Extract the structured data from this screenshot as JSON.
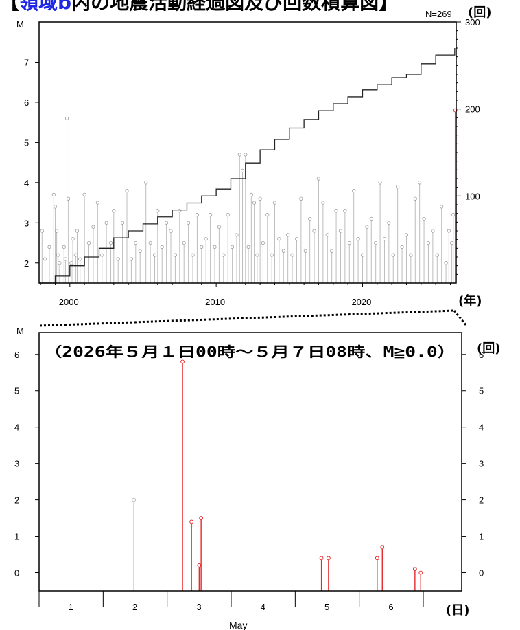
{
  "title": {
    "bracket_open": "【",
    "highlight": "領域b",
    "rest": "内の地震活動経過図及び回数積算図】"
  },
  "top_chart": {
    "count_label": "N=269",
    "left_axis_unit": "M",
    "right_axis_unit": "(回)",
    "x_axis_unit": "(年)",
    "y_ticks": [
      2,
      3,
      4,
      5,
      6,
      7
    ],
    "right_ticks": [
      100,
      200,
      300
    ],
    "x_ticks": [
      2000,
      2010,
      2020
    ]
  },
  "bottom_chart": {
    "left_axis_unit": "M",
    "right_axis_unit": "(回)",
    "x_axis_unit": "(日)",
    "month_label": "May",
    "period_label": "（2026年５月１日00時～５月７日08時、M≧0.0）",
    "y_ticks": [
      0,
      1,
      2,
      3,
      4,
      5,
      6
    ],
    "right_ticks": [
      0,
      1,
      2,
      3,
      4,
      5,
      6
    ],
    "day_ticks": [
      1,
      2,
      3,
      4,
      5,
      6
    ]
  },
  "colors": {
    "recent": "#e8292b",
    "past": "#bdbdbd",
    "cumulative": "#222222",
    "axis": "#000000"
  },
  "chart_data": [
    {
      "type": "scatter",
      "title": "",
      "xlabel": "(年)",
      "ylabel": "M",
      "y2label": "(回)",
      "xlim": [
        1997.9,
        2026.4
      ],
      "ylim": [
        1.5,
        8.0
      ],
      "y2lim": [
        0,
        300
      ],
      "x_ticks": [
        2000,
        2010,
        2020
      ],
      "y_ticks": [
        2,
        3,
        4,
        5,
        6,
        7
      ],
      "y2_ticks": [
        100,
        200,
        300
      ],
      "n_events": 269,
      "highlight_event": {
        "x": 2026.34,
        "m": 5.8,
        "color": "red"
      },
      "cumulative_count": {
        "x": [
          1997.9,
          1999.0,
          2000.0,
          2001.0,
          2002.0,
          2003.0,
          2004.0,
          2005.0,
          2006.0,
          2007.0,
          2008.0,
          2009.0,
          2010.0,
          2011.0,
          2012.0,
          2013.0,
          2014.0,
          2015.0,
          2016.0,
          2017.0,
          2018.0,
          2019.0,
          2020.0,
          2021.0,
          2022.0,
          2023.0,
          2024.0,
          2025.0,
          2026.3
        ],
        "y": [
          0,
          8,
          20,
          30,
          40,
          52,
          60,
          68,
          76,
          84,
          92,
          100,
          108,
          120,
          138,
          153,
          165,
          178,
          188,
          198,
          206,
          214,
          222,
          228,
          236,
          240,
          252,
          262,
          270
        ]
      },
      "events": {
        "x": [
          1998.1,
          1998.3,
          1998.6,
          1998.9,
          1999.0,
          1999.1,
          1999.2,
          1999.3,
          1999.6,
          1999.7,
          1999.8,
          1999.9,
          2000.1,
          2000.2,
          2000.4,
          2000.5,
          2000.7,
          2001.0,
          2001.3,
          2001.6,
          2001.9,
          2002.2,
          2002.5,
          2002.8,
          2003.0,
          2003.3,
          2003.6,
          2003.9,
          2004.2,
          2004.5,
          2004.8,
          2005.2,
          2005.5,
          2005.8,
          2006.0,
          2006.3,
          2006.6,
          2006.9,
          2007.2,
          2007.5,
          2007.8,
          2008.1,
          2008.4,
          2008.7,
          2009.0,
          2009.3,
          2009.6,
          2009.9,
          2010.2,
          2010.5,
          2010.8,
          2011.1,
          2011.4,
          2011.6,
          2011.8,
          2012.0,
          2012.2,
          2012.4,
          2012.6,
          2012.8,
          2013.0,
          2013.2,
          2013.5,
          2013.8,
          2014.0,
          2014.3,
          2014.6,
          2014.9,
          2015.2,
          2015.5,
          2015.8,
          2016.1,
          2016.4,
          2016.7,
          2017.0,
          2017.3,
          2017.6,
          2017.9,
          2018.2,
          2018.5,
          2018.8,
          2019.1,
          2019.4,
          2019.7,
          2020.0,
          2020.3,
          2020.6,
          2020.9,
          2021.2,
          2021.5,
          2021.8,
          2022.1,
          2022.4,
          2022.7,
          2023.0,
          2023.3,
          2023.6,
          2023.9,
          2024.2,
          2024.5,
          2024.8,
          2025.1,
          2025.4,
          2025.7,
          2025.9,
          2026.1,
          2026.2
        ],
        "m": [
          2.8,
          2.1,
          2.4,
          3.7,
          3.4,
          2.8,
          2.2,
          2.0,
          2.4,
          2.1,
          5.6,
          3.6,
          2.0,
          2.6,
          2.2,
          2.8,
          2.1,
          3.7,
          2.5,
          2.9,
          3.5,
          2.2,
          3.0,
          2.5,
          3.3,
          2.1,
          3.0,
          3.8,
          2.1,
          2.5,
          2.3,
          4.0,
          2.5,
          2.2,
          3.3,
          2.4,
          3.0,
          2.8,
          2.2,
          3.3,
          2.5,
          3.0,
          2.2,
          3.2,
          2.4,
          2.6,
          3.2,
          2.4,
          2.9,
          2.2,
          3.2,
          2.4,
          2.7,
          4.7,
          4.3,
          4.7,
          2.4,
          3.7,
          3.5,
          2.2,
          3.6,
          2.5,
          3.2,
          2.2,
          3.5,
          2.6,
          2.3,
          2.7,
          2.2,
          2.6,
          3.6,
          2.3,
          3.1,
          2.8,
          4.1,
          3.5,
          2.7,
          2.3,
          3.3,
          2.8,
          3.3,
          2.5,
          3.8,
          2.6,
          2.2,
          2.9,
          3.1,
          2.5,
          4.0,
          2.6,
          3.0,
          2.2,
          3.9,
          2.4,
          2.7,
          2.2,
          3.6,
          4.0,
          3.1,
          2.5,
          2.8,
          2.2,
          3.4,
          2.0,
          2.8,
          2.5,
          3.2
        ]
      }
    },
    {
      "type": "scatter",
      "title": "（2026年５月１日00時～５月７日08時、M≧0.0）",
      "xlabel": "May",
      "ylabel": "M",
      "y2label": "(回)",
      "xlim": [
        0.5,
        7.1
      ],
      "ylim": [
        -0.5,
        6.6
      ],
      "y2lim": [
        -0.5,
        6.6
      ],
      "x_ticks": [
        1,
        2,
        3,
        4,
        5,
        6
      ],
      "y_ticks": [
        0,
        1,
        2,
        3,
        4,
        5,
        6
      ],
      "y2_ticks": [
        0,
        1,
        2,
        3,
        4,
        5,
        6
      ],
      "events": [
        {
          "x": 1.98,
          "m": 2.0,
          "color": "gray"
        },
        {
          "x": 2.74,
          "m": 5.8,
          "color": "red"
        },
        {
          "x": 2.88,
          "m": 1.4,
          "color": "red"
        },
        {
          "x": 3.0,
          "m": 0.2,
          "color": "red"
        },
        {
          "x": 3.03,
          "m": 1.5,
          "color": "red"
        },
        {
          "x": 4.91,
          "m": 0.4,
          "color": "red"
        },
        {
          "x": 5.02,
          "m": 0.4,
          "color": "red"
        },
        {
          "x": 5.78,
          "m": 0.4,
          "color": "red"
        },
        {
          "x": 5.86,
          "m": 0.7,
          "color": "red"
        },
        {
          "x": 6.37,
          "m": 0.1,
          "color": "red"
        },
        {
          "x": 6.46,
          "m": 0.0,
          "color": "red"
        }
      ]
    }
  ]
}
